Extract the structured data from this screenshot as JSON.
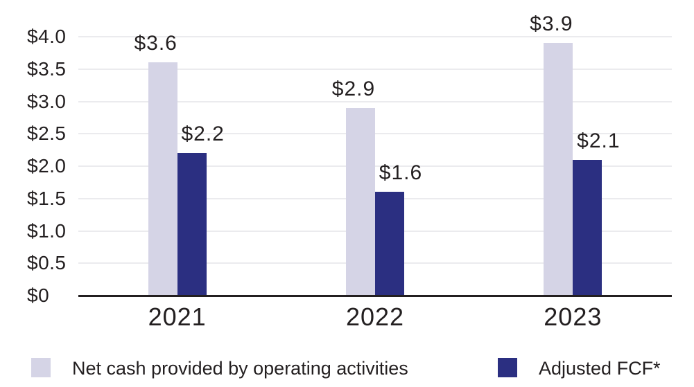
{
  "chart_data": {
    "type": "bar",
    "categories": [
      "2021",
      "2022",
      "2023"
    ],
    "series": [
      {
        "name": "Net cash provided by operating activities",
        "color": "#d5d4e6",
        "values": [
          3.6,
          2.9,
          3.9
        ],
        "labels": [
          "$3.6",
          "$2.9",
          "$3.9"
        ]
      },
      {
        "name": "Adjusted FCF*",
        "color": "#2b2f81",
        "values": [
          2.2,
          1.6,
          2.1
        ],
        "labels": [
          "$2.2",
          "$1.6",
          "$2.1"
        ]
      }
    ],
    "title": "",
    "xlabel": "",
    "ylabel": "",
    "ylim": [
      0,
      4.0
    ],
    "ytick_values": [
      4.0,
      3.5,
      3.0,
      2.5,
      2.0,
      1.5,
      1.0,
      0.5,
      0
    ],
    "ytick_labels": [
      "$4.0",
      "$3.5",
      "$3.0",
      "$2.5",
      "$2.0",
      "$1.5",
      "$1.0",
      "$0.5",
      "$0"
    ],
    "grid": true,
    "legend_position": "bottom",
    "colors": {
      "axis_line": "#231f20",
      "gridline": "#ebebee",
      "text": "#231f20",
      "background": "#ffffff"
    }
  }
}
